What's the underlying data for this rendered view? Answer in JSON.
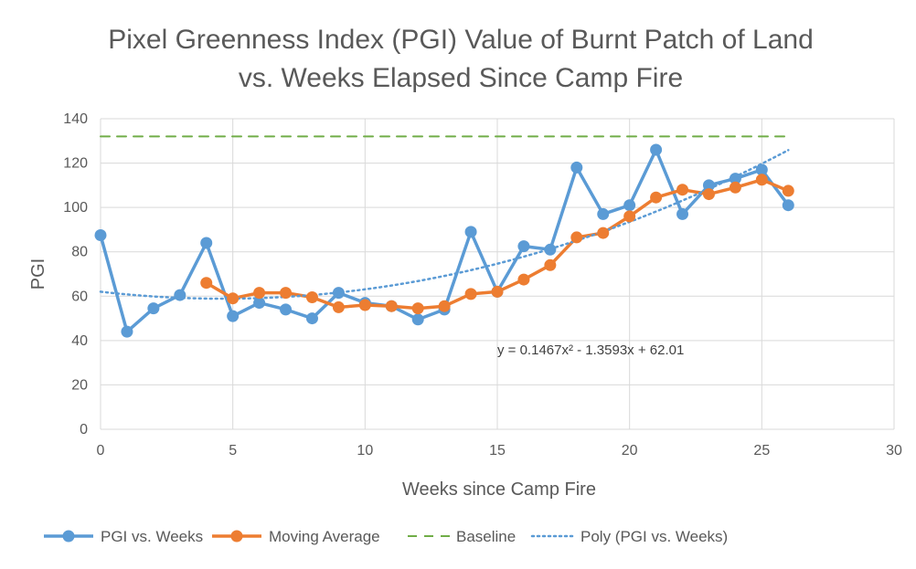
{
  "chart_data": {
    "type": "line",
    "title_line1": "Pixel Greenness Index (PGI) Value of Burnt Patch of Land",
    "title_line2": "vs. Weeks Elapsed Since Camp Fire",
    "xlabel": "Weeks since Camp Fire",
    "ylabel": "PGI",
    "xlim": [
      0,
      30
    ],
    "ylim": [
      0,
      140
    ],
    "x_ticks": [
      0,
      5,
      10,
      15,
      20,
      25,
      30
    ],
    "y_ticks": [
      0,
      20,
      40,
      60,
      80,
      100,
      120,
      140
    ],
    "grid": true,
    "legend_position": "bottom",
    "series": [
      {
        "name": "PGI vs. Weeks",
        "color": "#5B9BD5",
        "style": "line-markers",
        "x": [
          0,
          1,
          2,
          3,
          4,
          5,
          6,
          7,
          8,
          9,
          10,
          11,
          12,
          13,
          14,
          15,
          16,
          17,
          18,
          19,
          20,
          21,
          22,
          23,
          24,
          25,
          26
        ],
        "y": [
          87.5,
          44,
          54.5,
          60.5,
          84,
          51,
          57,
          54,
          50,
          61.5,
          57,
          55.5,
          49.5,
          54,
          89,
          62,
          82.5,
          81,
          118,
          97,
          101,
          126,
          97,
          110,
          113,
          117,
          101
        ]
      },
      {
        "name": "Moving Average",
        "color": "#ED7D31",
        "style": "line-markers",
        "x": [
          4,
          5,
          6,
          7,
          8,
          9,
          10,
          11,
          12,
          13,
          14,
          15,
          16,
          17,
          18,
          19,
          20,
          21,
          22,
          23,
          24,
          25,
          26
        ],
        "y": [
          66,
          59,
          61.5,
          61.5,
          59.5,
          55,
          56,
          55.5,
          54.5,
          55.5,
          61,
          62,
          67.5,
          74,
          86.5,
          88.5,
          96,
          104.5,
          108,
          106,
          109,
          112.5,
          107.5
        ]
      },
      {
        "name": "Baseline",
        "color": "#70AD47",
        "style": "dashed",
        "x": [
          0,
          26
        ],
        "y": [
          132,
          132
        ]
      },
      {
        "name": "Poly (PGI vs. Weeks)",
        "color": "#5B9BD5",
        "style": "dotted-trendline",
        "coefficients": {
          "a": 0.1467,
          "b": -1.3593,
          "c": 62.01
        },
        "x_range": [
          0,
          26
        ]
      }
    ],
    "annotations": [
      {
        "text": "y = 0.1467x² - 1.3593x + 62.01",
        "x": 15,
        "y": 36
      }
    ]
  }
}
